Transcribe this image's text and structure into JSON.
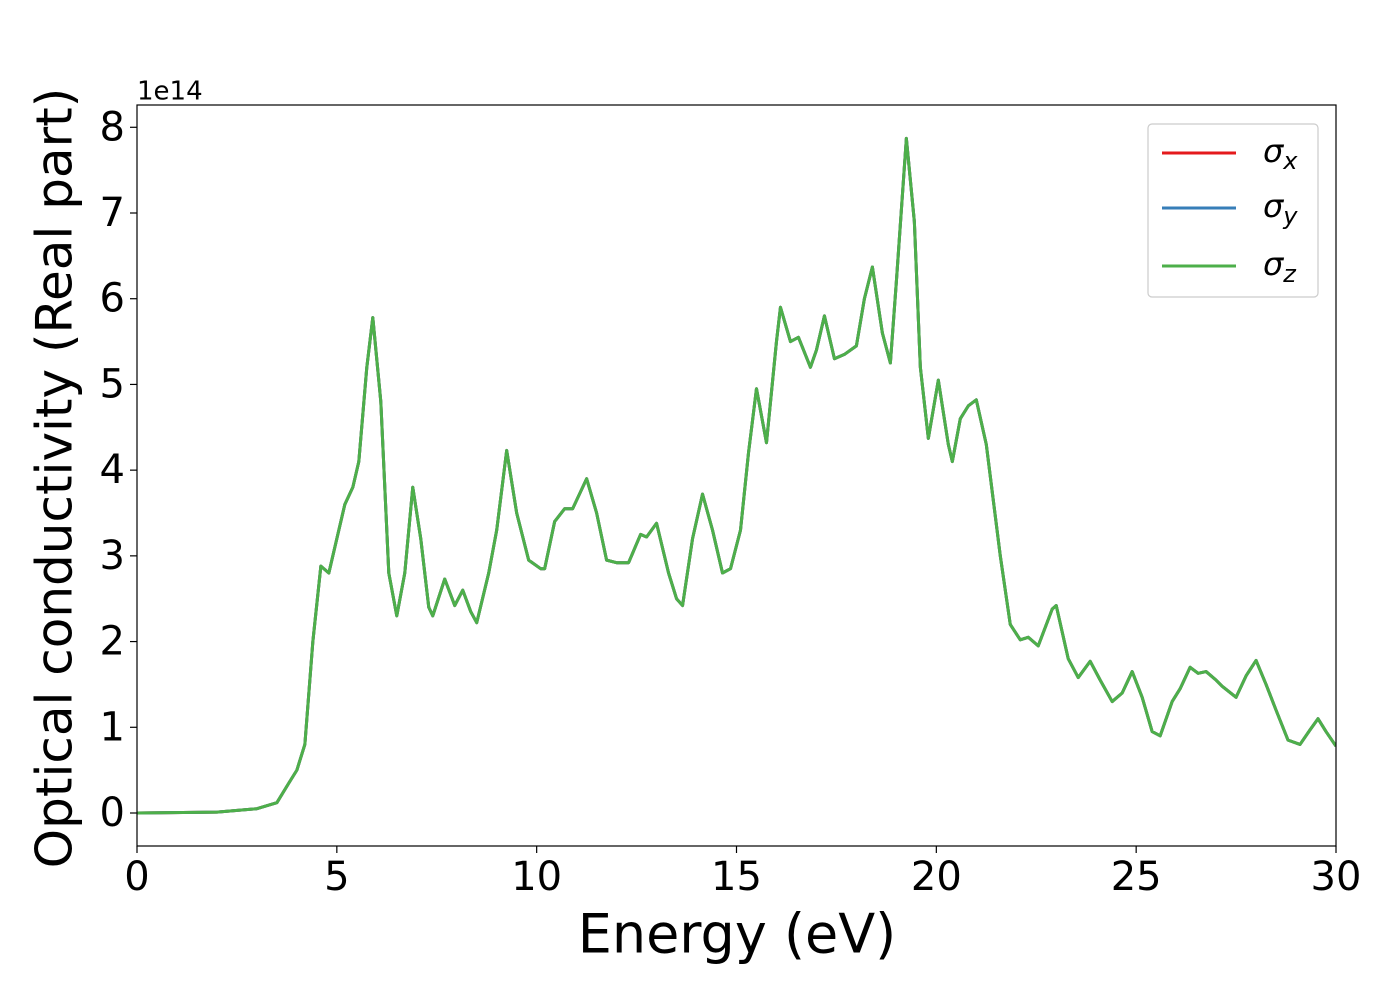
{
  "chart_data": {
    "type": "line",
    "xlabel": "Energy (eV)",
    "ylabel": "Optical conductivity (Real part)",
    "y_offset_label": "1e14",
    "xlim": [
      0,
      30
    ],
    "ylim": [
      -0.385,
      8.26
    ],
    "xticks": [
      0,
      5,
      10,
      15,
      20,
      25,
      30
    ],
    "yticks": [
      0,
      1,
      2,
      3,
      4,
      5,
      6,
      7,
      8
    ],
    "grid": false,
    "legend": "upper right",
    "x": [
      0,
      2,
      3,
      3.5,
      3.8,
      4.0,
      4.2,
      4.4,
      4.6,
      4.8,
      5.0,
      5.2,
      5.4,
      5.55,
      5.75,
      5.9,
      6.1,
      6.3,
      6.5,
      6.7,
      6.9,
      7.1,
      7.3,
      7.4,
      7.7,
      7.95,
      8.15,
      8.35,
      8.5,
      8.8,
      9.0,
      9.25,
      9.5,
      9.8,
      10.1,
      10.2,
      10.45,
      10.7,
      10.9,
      11.25,
      11.5,
      11.75,
      12.0,
      12.3,
      12.6,
      12.75,
      13.0,
      13.3,
      13.5,
      13.65,
      13.9,
      14.15,
      14.4,
      14.65,
      14.85,
      15.1,
      15.3,
      15.5,
      15.75,
      16.0,
      16.1,
      16.35,
      16.55,
      16.85,
      17.0,
      17.2,
      17.45,
      17.7,
      18.0,
      18.2,
      18.4,
      18.65,
      18.85,
      19.0,
      19.25,
      19.45,
      19.6,
      19.8,
      20.05,
      20.3,
      20.4,
      20.6,
      20.8,
      21.0,
      21.25,
      21.6,
      21.85,
      22.1,
      22.3,
      22.55,
      22.9,
      23.0,
      23.3,
      23.55,
      23.85,
      24.1,
      24.4,
      24.65,
      24.9,
      25.15,
      25.4,
      25.6,
      25.9,
      26.1,
      26.35,
      26.55,
      26.75,
      27.0,
      27.15,
      27.5,
      27.75,
      28.0,
      28.25,
      28.5,
      28.8,
      29.1,
      29.35,
      29.55,
      29.75,
      30.0
    ],
    "series": [
      {
        "name": "σx",
        "color": "#e41a1c",
        "values": [
          0,
          0.01,
          0.05,
          0.12,
          0.35,
          0.5,
          0.8,
          2.0,
          2.88,
          2.8,
          3.2,
          3.6,
          3.8,
          4.1,
          5.2,
          5.78,
          4.8,
          2.8,
          2.3,
          2.8,
          3.8,
          3.2,
          2.4,
          2.3,
          2.73,
          2.42,
          2.6,
          2.35,
          2.22,
          2.8,
          3.3,
          4.23,
          3.5,
          2.95,
          2.85,
          2.85,
          3.4,
          3.55,
          3.55,
          3.9,
          3.5,
          2.95,
          2.92,
          2.92,
          3.25,
          3.22,
          3.38,
          2.8,
          2.5,
          2.42,
          3.2,
          3.72,
          3.3,
          2.8,
          2.85,
          3.3,
          4.2,
          4.95,
          4.32,
          5.5,
          5.9,
          5.5,
          5.55,
          5.2,
          5.4,
          5.8,
          5.3,
          5.35,
          5.45,
          6.0,
          6.37,
          5.6,
          5.25,
          6.2,
          7.87,
          6.9,
          5.2,
          4.37,
          5.05,
          4.3,
          4.1,
          4.6,
          4.75,
          4.82,
          4.3,
          3.0,
          2.2,
          2.02,
          2.05,
          1.95,
          2.38,
          2.42,
          1.8,
          1.58,
          1.77,
          1.55,
          1.3,
          1.4,
          1.65,
          1.35,
          0.95,
          0.9,
          1.3,
          1.45,
          1.7,
          1.63,
          1.65,
          1.55,
          1.48,
          1.35,
          1.6,
          1.78,
          1.5,
          1.2,
          0.85,
          0.8,
          0.97,
          1.1,
          0.95,
          0.78
        ]
      },
      {
        "name": "σy",
        "color": "#377eb8",
        "values": [
          0,
          0.01,
          0.05,
          0.12,
          0.35,
          0.5,
          0.8,
          2.0,
          2.88,
          2.8,
          3.2,
          3.6,
          3.8,
          4.1,
          5.2,
          5.78,
          4.8,
          2.8,
          2.3,
          2.8,
          3.8,
          3.2,
          2.4,
          2.3,
          2.73,
          2.42,
          2.6,
          2.35,
          2.22,
          2.8,
          3.3,
          4.23,
          3.5,
          2.95,
          2.85,
          2.85,
          3.4,
          3.55,
          3.55,
          3.9,
          3.5,
          2.95,
          2.92,
          2.92,
          3.25,
          3.22,
          3.38,
          2.8,
          2.5,
          2.42,
          3.2,
          3.72,
          3.3,
          2.8,
          2.85,
          3.3,
          4.2,
          4.95,
          4.32,
          5.5,
          5.9,
          5.5,
          5.55,
          5.2,
          5.4,
          5.8,
          5.3,
          5.35,
          5.45,
          6.0,
          6.37,
          5.6,
          5.25,
          6.2,
          7.87,
          6.9,
          5.2,
          4.37,
          5.05,
          4.3,
          4.1,
          4.6,
          4.75,
          4.82,
          4.3,
          3.0,
          2.2,
          2.02,
          2.05,
          1.95,
          2.38,
          2.42,
          1.8,
          1.58,
          1.77,
          1.55,
          1.3,
          1.4,
          1.65,
          1.35,
          0.95,
          0.9,
          1.3,
          1.45,
          1.7,
          1.63,
          1.65,
          1.55,
          1.48,
          1.35,
          1.6,
          1.78,
          1.5,
          1.2,
          0.85,
          0.8,
          0.97,
          1.1,
          0.95,
          0.78
        ]
      },
      {
        "name": "σz",
        "color": "#4daf4a",
        "values": [
          0,
          0.01,
          0.05,
          0.12,
          0.35,
          0.5,
          0.8,
          2.0,
          2.88,
          2.8,
          3.2,
          3.6,
          3.8,
          4.1,
          5.2,
          5.78,
          4.8,
          2.8,
          2.3,
          2.8,
          3.8,
          3.2,
          2.4,
          2.3,
          2.73,
          2.42,
          2.6,
          2.35,
          2.22,
          2.8,
          3.3,
          4.23,
          3.5,
          2.95,
          2.85,
          2.85,
          3.4,
          3.55,
          3.55,
          3.9,
          3.5,
          2.95,
          2.92,
          2.92,
          3.25,
          3.22,
          3.38,
          2.8,
          2.5,
          2.42,
          3.2,
          3.72,
          3.3,
          2.8,
          2.85,
          3.3,
          4.2,
          4.95,
          4.32,
          5.5,
          5.9,
          5.5,
          5.55,
          5.2,
          5.4,
          5.8,
          5.3,
          5.35,
          5.45,
          6.0,
          6.37,
          5.6,
          5.25,
          6.2,
          7.87,
          6.9,
          5.2,
          4.37,
          5.05,
          4.3,
          4.1,
          4.6,
          4.75,
          4.82,
          4.3,
          3.0,
          2.2,
          2.02,
          2.05,
          1.95,
          2.38,
          2.42,
          1.8,
          1.58,
          1.77,
          1.55,
          1.3,
          1.4,
          1.65,
          1.35,
          0.95,
          0.9,
          1.3,
          1.45,
          1.7,
          1.63,
          1.65,
          1.55,
          1.48,
          1.35,
          1.6,
          1.78,
          1.5,
          1.2,
          0.85,
          0.8,
          0.97,
          1.1,
          0.95,
          0.78
        ]
      }
    ]
  }
}
